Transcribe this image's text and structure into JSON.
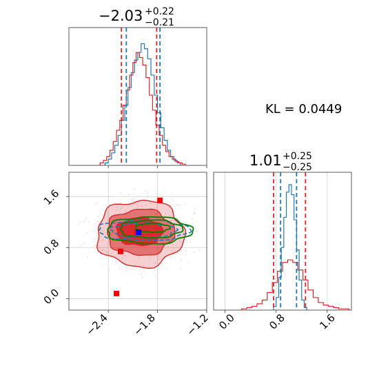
{
  "chart_data": [
    {
      "type": "histogram",
      "panel": "top-left marginal",
      "title": {
        "main": "−2.03",
        "sup": "+0.22",
        "sub": "−0.21"
      },
      "xlim": [
        -2.88,
        -1.2
      ],
      "x_ticks": [
        "−2.4",
        "−1.8",
        "−1.2"
      ],
      "series": [
        {
          "color": "#1f77b4",
          "x": [
            -2.42,
            -2.38,
            -2.34,
            -2.3,
            -2.26,
            -2.22,
            -2.18,
            -2.14,
            -2.1,
            -2.06,
            -2.02,
            -1.98,
            -1.94,
            -1.9,
            -1.86,
            -1.82,
            -1.78,
            -1.74,
            -1.7,
            -1.66,
            -1.62,
            -1.58,
            -1.54
          ],
          "y": [
            0.02,
            0.05,
            0.1,
            0.16,
            0.24,
            0.36,
            0.48,
            0.62,
            0.74,
            0.84,
            0.9,
            0.97,
            0.93,
            0.85,
            0.72,
            0.56,
            0.42,
            0.3,
            0.2,
            0.12,
            0.07,
            0.04,
            0.02
          ]
        },
        {
          "color": "#d62728",
          "x": [
            -2.48,
            -2.44,
            -2.4,
            -2.36,
            -2.32,
            -2.28,
            -2.24,
            -2.2,
            -2.16,
            -2.12,
            -2.08,
            -2.04,
            -2.0,
            -1.96,
            -1.92,
            -1.88,
            -1.84,
            -1.8,
            -1.76,
            -1.72,
            -1.68,
            -1.64,
            -1.6,
            -1.56,
            -1.52,
            -1.48
          ],
          "y": [
            0.02,
            0.04,
            0.07,
            0.12,
            0.19,
            0.28,
            0.36,
            0.48,
            0.6,
            0.72,
            0.82,
            0.9,
            0.86,
            0.8,
            0.7,
            0.56,
            0.44,
            0.32,
            0.24,
            0.16,
            0.11,
            0.07,
            0.05,
            0.03,
            0.02,
            0.01
          ]
        }
      ],
      "vlines": [
        {
          "x": -2.24,
          "color": "#d62728"
        },
        {
          "x": -1.81,
          "color": "#d62728"
        },
        {
          "x": -2.18,
          "color": "#1f77b4"
        },
        {
          "x": -1.77,
          "color": "#1f77b4"
        }
      ]
    },
    {
      "type": "contour",
      "panel": "bottom-left joint",
      "xlim": [
        -2.88,
        -1.2
      ],
      "ylim": [
        -0.18,
        1.98
      ],
      "x_ticks": [
        "−2.4",
        "−1.8",
        "−1.2"
      ],
      "y_ticks": [
        "0.0",
        "0.8",
        "1.6"
      ],
      "grid": true,
      "red_contours": [
        {
          "center": [
            -2.01,
            1.02
          ],
          "rx": 0.53,
          "ry": 0.52,
          "fill_opacity": 0.22
        },
        {
          "center": [
            -2.01,
            1.04
          ],
          "rx": 0.41,
          "ry": 0.36,
          "fill_opacity": 0.55
        },
        {
          "center": [
            -2.02,
            1.05
          ],
          "rx": 0.28,
          "ry": 0.22,
          "fill_opacity": 0.95
        }
      ],
      "blue_contours": [
        {
          "center": [
            -1.97,
            1.07
          ],
          "rx": 0.56,
          "ry": 0.16
        },
        {
          "center": [
            -1.97,
            1.07
          ],
          "rx": 0.4,
          "ry": 0.11
        }
      ],
      "green_contours": [
        {
          "center": [
            -1.9,
            1.07
          ],
          "rx": 0.52,
          "ry": 0.21
        },
        {
          "center": [
            -1.88,
            1.09
          ],
          "rx": 0.38,
          "ry": 0.14
        },
        {
          "center": [
            -1.86,
            1.11
          ],
          "rx": 0.21,
          "ry": 0.07
        }
      ],
      "markers": [
        {
          "x": -1.77,
          "y": 1.54,
          "color": "#ff0000"
        },
        {
          "x": -2.3,
          "y": 0.08,
          "color": "#ff0000"
        },
        {
          "x": -2.05,
          "y": 1.04,
          "color": "#ff0000"
        },
        {
          "x": -2.25,
          "y": 0.74,
          "color": "#ff0000"
        },
        {
          "x": -2.03,
          "y": 1.04,
          "color": "#0000ff"
        }
      ]
    },
    {
      "type": "histogram",
      "panel": "bottom-right marginal",
      "title": {
        "main": "1.01",
        "sup": "+0.25",
        "sub": "−0.25"
      },
      "xlim": [
        -0.18,
        1.98
      ],
      "x_ticks": [
        "0.0",
        "0.8",
        "1.6"
      ],
      "series": [
        {
          "color": "#1f77b4",
          "x": [
            0.78,
            0.82,
            0.86,
            0.9,
            0.94,
            0.98,
            1.02,
            1.06,
            1.1,
            1.14,
            1.18,
            1.22,
            1.26
          ],
          "y": [
            0.03,
            0.1,
            0.26,
            0.5,
            0.74,
            0.94,
            1.0,
            0.92,
            0.72,
            0.48,
            0.24,
            0.08,
            0.02
          ]
        },
        {
          "color": "#d62728",
          "x": [
            0.3,
            0.38,
            0.46,
            0.54,
            0.62,
            0.7,
            0.78,
            0.86,
            0.94,
            1.02,
            1.1,
            1.18,
            1.26,
            1.34,
            1.42,
            1.5,
            1.58,
            1.66,
            1.74,
            1.82,
            1.9
          ],
          "y": [
            0.01,
            0.02,
            0.03,
            0.05,
            0.08,
            0.14,
            0.22,
            0.31,
            0.38,
            0.4,
            0.38,
            0.32,
            0.24,
            0.16,
            0.1,
            0.06,
            0.04,
            0.03,
            0.02,
            0.01,
            0.01
          ]
        }
      ],
      "vlines": [
        {
          "x": 0.76,
          "color": "#d62728"
        },
        {
          "x": 1.26,
          "color": "#d62728"
        },
        {
          "x": 0.87,
          "color": "#1f77b4"
        },
        {
          "x": 1.12,
          "color": "#1f77b4"
        }
      ]
    }
  ],
  "annotation": "KL = 0.0449",
  "colors": {
    "red": "#d62728",
    "blue": "#1f77b4",
    "green": "#008000",
    "marker_red": "#ff0000",
    "marker_blue": "#0000ff"
  }
}
